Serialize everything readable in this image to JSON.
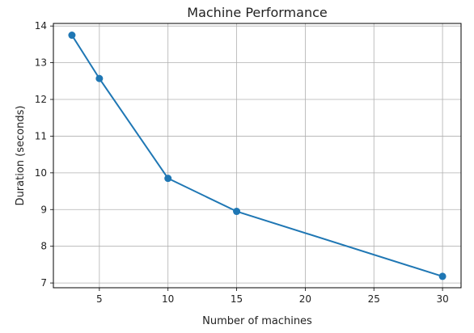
{
  "chart_data": {
    "type": "line",
    "title": "Machine Performance",
    "xlabel": "Number of machines",
    "ylabel": "Duration (seconds)",
    "x": [
      3,
      5,
      10,
      15,
      30
    ],
    "series": [
      {
        "values": [
          13.75,
          12.57,
          9.85,
          8.95,
          7.18
        ],
        "color": "#1f77b4",
        "marker": "circle"
      }
    ],
    "xlim": [
      1.65,
      31.35
    ],
    "ylim": [
      6.87,
      14.07
    ],
    "xticks": [
      5,
      10,
      15,
      20,
      25,
      30
    ],
    "yticks": [
      7,
      8,
      9,
      10,
      11,
      12,
      13,
      14
    ],
    "grid": true
  }
}
